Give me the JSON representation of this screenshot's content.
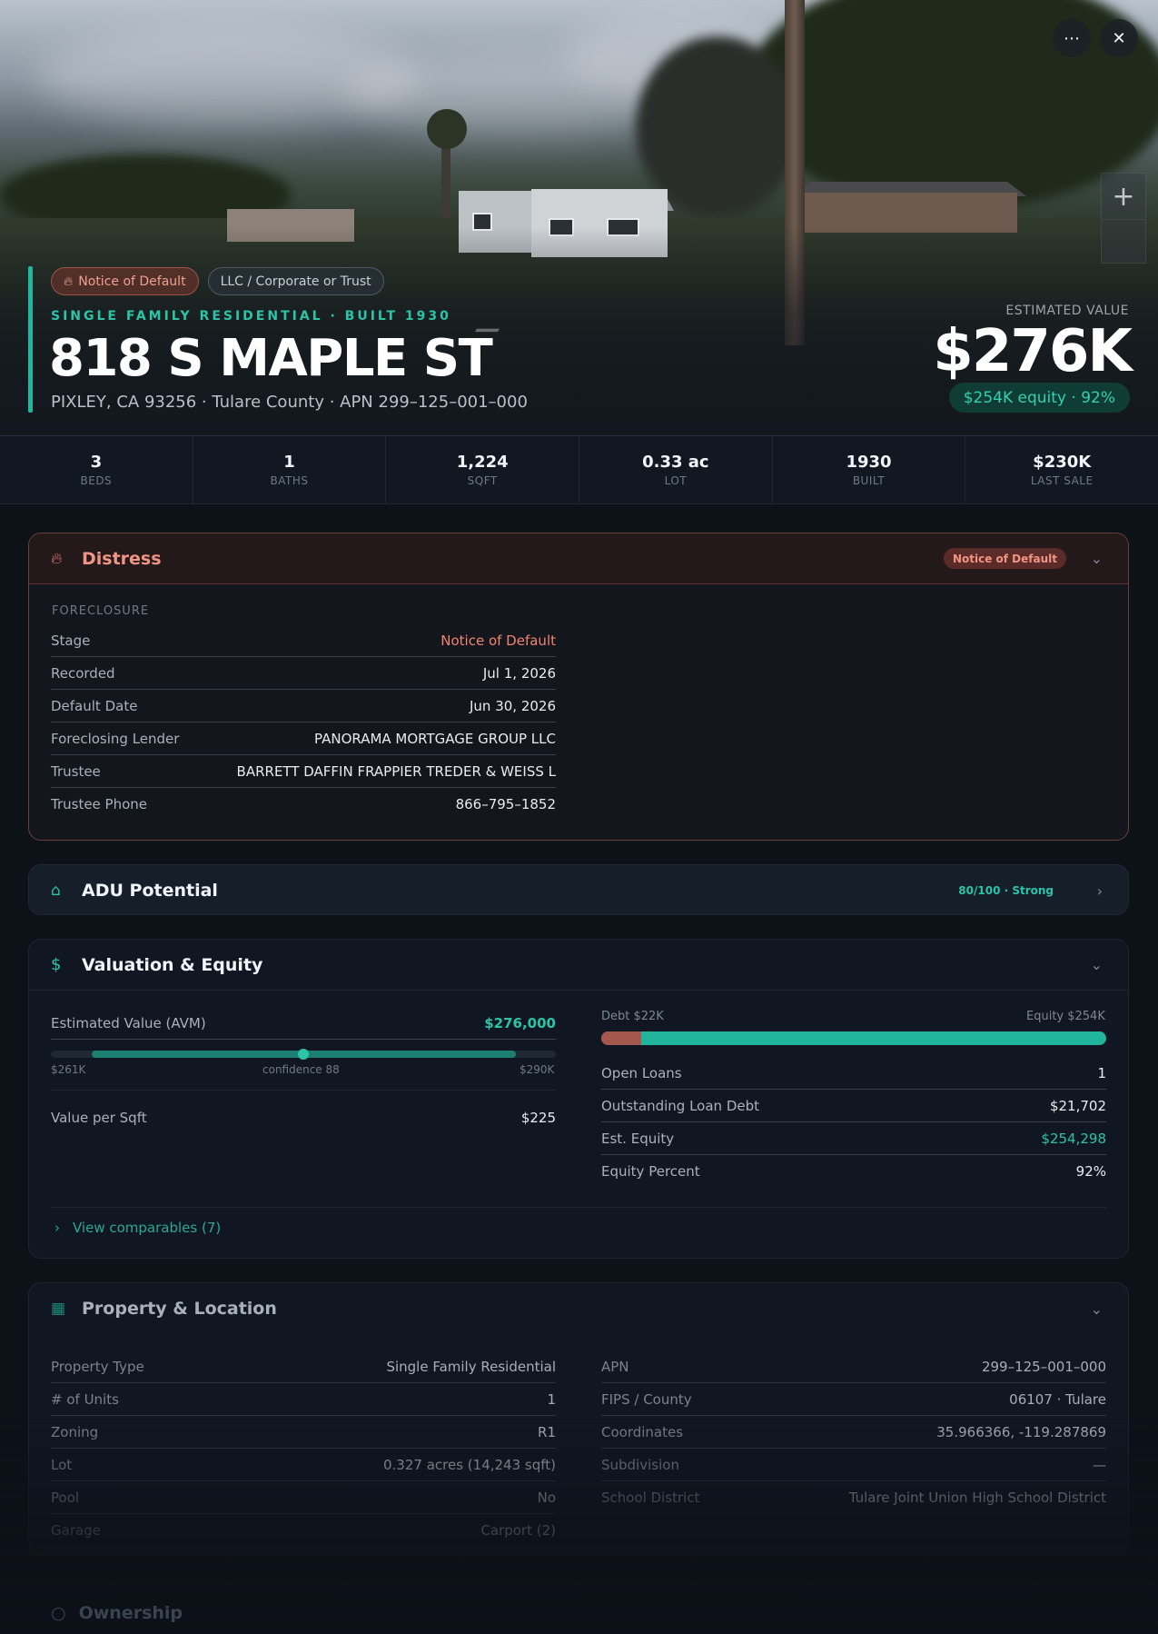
{
  "hero": {
    "badges": [
      {
        "label": "Notice of Default",
        "icon": "flame-icon"
      },
      {
        "label": "LLC / Corporate or Trust"
      }
    ],
    "subhead": "SINGLE FAMILY RESIDENTIAL · BUILT 1930",
    "address": "818 S MAPLE ST",
    "location": "PIXLEY, CA 93256 · Tulare County · APN 299–125–001–000",
    "estimated_label": "ESTIMATED VALUE",
    "estimated_value": "$276K",
    "equity_badge": "$254K equity · 92%",
    "controls": {
      "more_icon": "more-horizontal-icon",
      "close_icon": "close-icon",
      "zoom_in": "+",
      "zoom_out": ""
    }
  },
  "stats": [
    {
      "value": "3",
      "label": "BEDS"
    },
    {
      "value": "1",
      "label": "BATHS"
    },
    {
      "value": "1,224",
      "label": "SQFT"
    },
    {
      "value": "0.33 ac",
      "label": "LOT"
    },
    {
      "value": "1930",
      "label": "BUILT"
    },
    {
      "value": "$230K",
      "label": "LAST SALE"
    }
  ],
  "distress": {
    "title": "Distress",
    "tag": "Notice of Default",
    "section": "FORECLOSURE",
    "rows": [
      {
        "k": "Stage",
        "v": "Notice of Default"
      },
      {
        "k": "Recorded",
        "v": "Jul 1, 2026"
      },
      {
        "k": "Default Date",
        "v": "Jun 30, 2026"
      },
      {
        "k": "Foreclosing Lender",
        "v": "PANORAMA MORTGAGE GROUP LLC"
      },
      {
        "k": "Trustee",
        "v": "BARRETT DAFFIN FRAPPIER TREDER & WEISS L"
      },
      {
        "k": "Trustee Phone",
        "v": "866–795–1852"
      }
    ]
  },
  "adu": {
    "title": "ADU Potential",
    "score": "80/100 · Strong"
  },
  "valuation": {
    "title": "Valuation & Equity",
    "avm_label": "Estimated Value (AVM)",
    "avm_value": "$276,000",
    "avm_low": "$261K",
    "avm_conf": "confidence 88",
    "avm_high": "$290K",
    "vps_label": "Value per Sqft",
    "vps_value": "$225",
    "debt_label": "Debt $22K",
    "equity_label": "Equity $254K",
    "equity_fraction": 0.92,
    "rows": [
      {
        "k": "Open Loans",
        "v": "1"
      },
      {
        "k": "Outstanding Loan Debt",
        "v": "$21,702"
      },
      {
        "k": "Est. Equity",
        "v": "$254,298"
      },
      {
        "k": "Equity Percent",
        "v": "92%"
      }
    ],
    "comparables": "View comparables (7)"
  },
  "property": {
    "title": "Property & Location",
    "left": [
      {
        "k": "Property Type",
        "v": "Single Family Residential"
      },
      {
        "k": "# of Units",
        "v": "1"
      },
      {
        "k": "Zoning",
        "v": "R1"
      },
      {
        "k": "Lot",
        "v": "0.327 acres (14,243 sqft)"
      },
      {
        "k": "Pool",
        "v": "No"
      },
      {
        "k": "Garage",
        "v": "Carport (2)"
      }
    ],
    "right": [
      {
        "k": "APN",
        "v": "299–125–001–000"
      },
      {
        "k": "FIPS / County",
        "v": "06107 · Tulare"
      },
      {
        "k": "Coordinates",
        "v": "35.966366, -119.287869"
      },
      {
        "k": "Subdivision",
        "v": "—"
      },
      {
        "k": "School District",
        "v": "Tulare Joint Union High School District"
      }
    ]
  },
  "ownership": {
    "title": "Ownership"
  },
  "colors": {
    "accent": "#2bc4a8",
    "distress": "#f09484",
    "bg": "#0d1118"
  }
}
